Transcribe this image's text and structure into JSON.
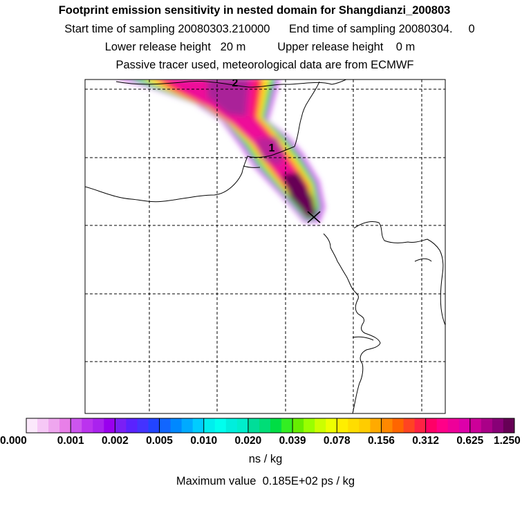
{
  "header": {
    "title": "Footprint emission sensitivity in nested domain for Shangdianzi_200803",
    "sampling_line": "Start time of sampling 20080303.210000      End time of sampling 20080304.     0",
    "release_line": "Lower release height   20 m          Upper release height    0 m",
    "tracer_line": "Passive tracer used, meteorological data are from ECMWF"
  },
  "map": {
    "contour_labels": [
      "1",
      "2"
    ],
    "receptor_marker": "cross-icon"
  },
  "colorbar": {
    "tick_labels": [
      "0.000",
      "0.001",
      "0.002",
      "0.005",
      "0.010",
      "0.020",
      "0.039",
      "0.078",
      "0.156",
      "0.312",
      "0.625",
      "1.250"
    ],
    "colors": [
      "#fbe8fb",
      "#f6c8f6",
      "#efa6ef",
      "#e87fe8",
      "#cc55ee",
      "#bb33ee",
      "#aa22ee",
      "#9900ee",
      "#7a1ff5",
      "#5a22ff",
      "#4433ff",
      "#2244ff",
      "#1166ff",
      "#0088ff",
      "#00aaff",
      "#00ccff",
      "#00eeee",
      "#00ffee",
      "#00eedd",
      "#00eecc",
      "#00dd99",
      "#00dd77",
      "#00dd44",
      "#33ee22",
      "#66ee00",
      "#99ff00",
      "#ccff00",
      "#eeff00",
      "#ffee00",
      "#ffdd00",
      "#ffcc00",
      "#ffaa00",
      "#ff8800",
      "#ff6600",
      "#ff4422",
      "#ff2244",
      "#ff0066",
      "#ff0088",
      "#ee0099",
      "#dd00aa",
      "#cc0099",
      "#aa0088",
      "#880077",
      "#660055"
    ],
    "units": "ns / kg",
    "maximum": "Maximum value  0.185E+02 ps / kg"
  }
}
